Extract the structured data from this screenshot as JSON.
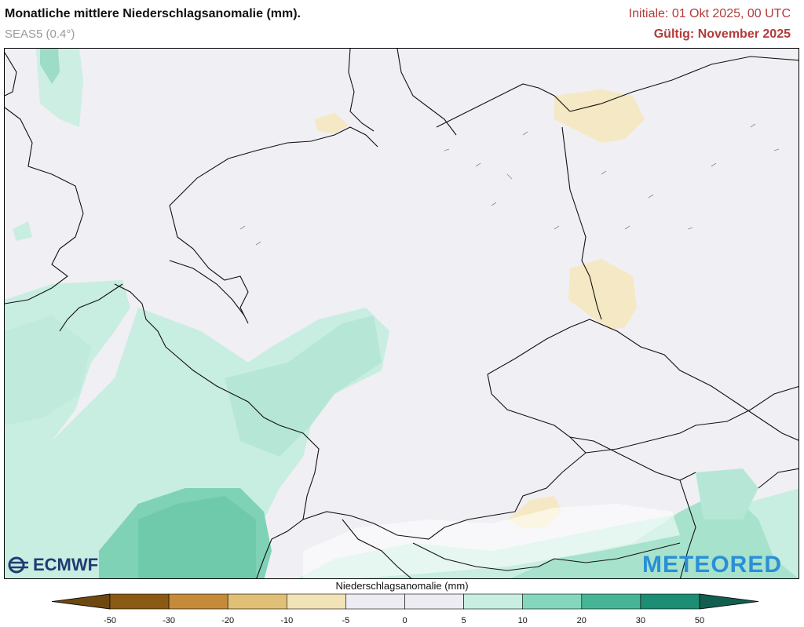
{
  "header": {
    "title": "Monatliche mittlere Niederschlagsanomalie (mm).",
    "model": "SEAS5 (0.4°)",
    "initial": "Initiale: 01 Okt 2025, 00 UTC",
    "valid": "Gültig: November 2025"
  },
  "logos": {
    "ecmwf": "ECMWF",
    "meteored": "METEORED"
  },
  "legend": {
    "title": "Niederschlagsanomalie (mm)",
    "ticks": [
      "-50",
      "-30",
      "-20",
      "-10",
      "-5",
      "0",
      "5",
      "10",
      "20",
      "30",
      "50"
    ],
    "colors": [
      "#8a5a14",
      "#c58a3a",
      "#e0bf76",
      "#f2e3b6",
      "#eeecf3",
      "#eeecf3",
      "#c8eee2",
      "#84d7bd",
      "#47b595",
      "#1d8d74"
    ],
    "end_colors": [
      "#6e4810",
      "#125f4f"
    ]
  }
}
